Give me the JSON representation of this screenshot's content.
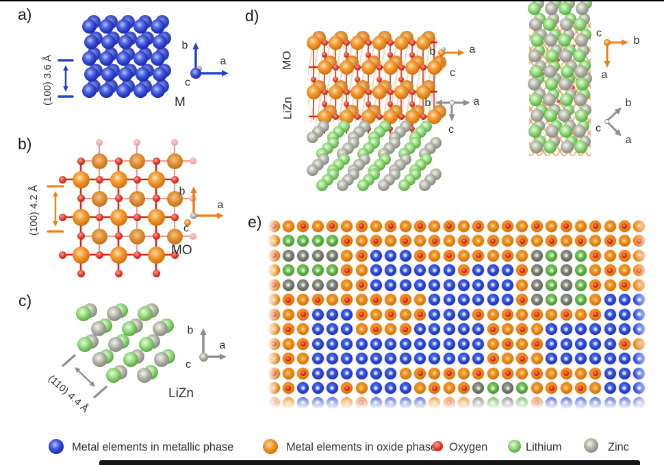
{
  "panels": {
    "a": {
      "tag": "a)",
      "dim": "(100) 3.6 Å",
      "material": "M",
      "axes": {
        "b": "b",
        "a": "a",
        "c": "c"
      },
      "atom_color": "#2136c8"
    },
    "b": {
      "tag": "b)",
      "dim": "(100) 4.2 Å",
      "material": "MO",
      "axes": {
        "b": "b",
        "a": "a",
        "c": "c"
      },
      "metal_color": "#de7a10",
      "oxygen_color": "#d42424"
    },
    "c": {
      "tag": "c)",
      "dim": "(110) 4.4 Å",
      "material": "LiZn",
      "axes": {
        "b": "b",
        "a": "a",
        "c": "c"
      },
      "lithium_color": "#7dc969",
      "zinc_color": "#8a8d85"
    },
    "d": {
      "tag": "d)",
      "layer_mo": "MO",
      "layer_lizn": "LiZn",
      "mo_front_axes": {
        "b": "b",
        "a": "a",
        "c": "c"
      },
      "lizn_front_axes": {
        "b": "b",
        "a": "a",
        "c": "c"
      },
      "mo_side_axes": {
        "c": "c",
        "b": "b",
        "a": "a"
      },
      "lizn_side_axes": {
        "c": "c",
        "b": "b",
        "a": "a"
      }
    },
    "e": {
      "tag": "e)",
      "cell_types": {
        "o": "metal-in-oxide-phase",
        "r": "metal-in-oxide-phase-with-oxygen",
        "b": "metal-in-metallic-phase",
        "g": "lithium",
        "z": "zinc"
      },
      "grid_rows": [
        "rororororororororororororo",
        "oggggrorororororororororor",
        "rzzzzorbbbrorororozgzgroro",
        "oggggrobbbbbbrbbbrzgzgoror",
        "rzzzzorbbbbbbbbbbozgzgroro",
        "orororororobbbbbbrzgzgobbb",
        "rorbbbrororbbbrororororbbb",
        "orobbbororbbbbbrorobbbbbbb",
        "rorbbbbbbbbbbbbororbbbbbro",
        "orobbbbbbbbbbbbrorobbbbbbb",
        "rorbbbbbborororororororbbb",
        "orbbbrobbbororzgzgororobbb",
        "robbborbbbborozgzgrbbbbbbb"
      ]
    }
  },
  "legend": {
    "items": [
      {
        "name": "metallic-metal",
        "label": "Metal elements in metallic phase",
        "color": "#2136c8"
      },
      {
        "name": "oxide-metal",
        "label": "Metal elements in oxide phase",
        "color": "#de7a10"
      },
      {
        "name": "oxygen",
        "label": "Oxygen",
        "color": "#d42424"
      },
      {
        "name": "lithium",
        "label": "Lithium",
        "color": "#7dc969"
      },
      {
        "name": "zinc",
        "label": "Zinc",
        "color": "#8a8d85"
      }
    ]
  }
}
